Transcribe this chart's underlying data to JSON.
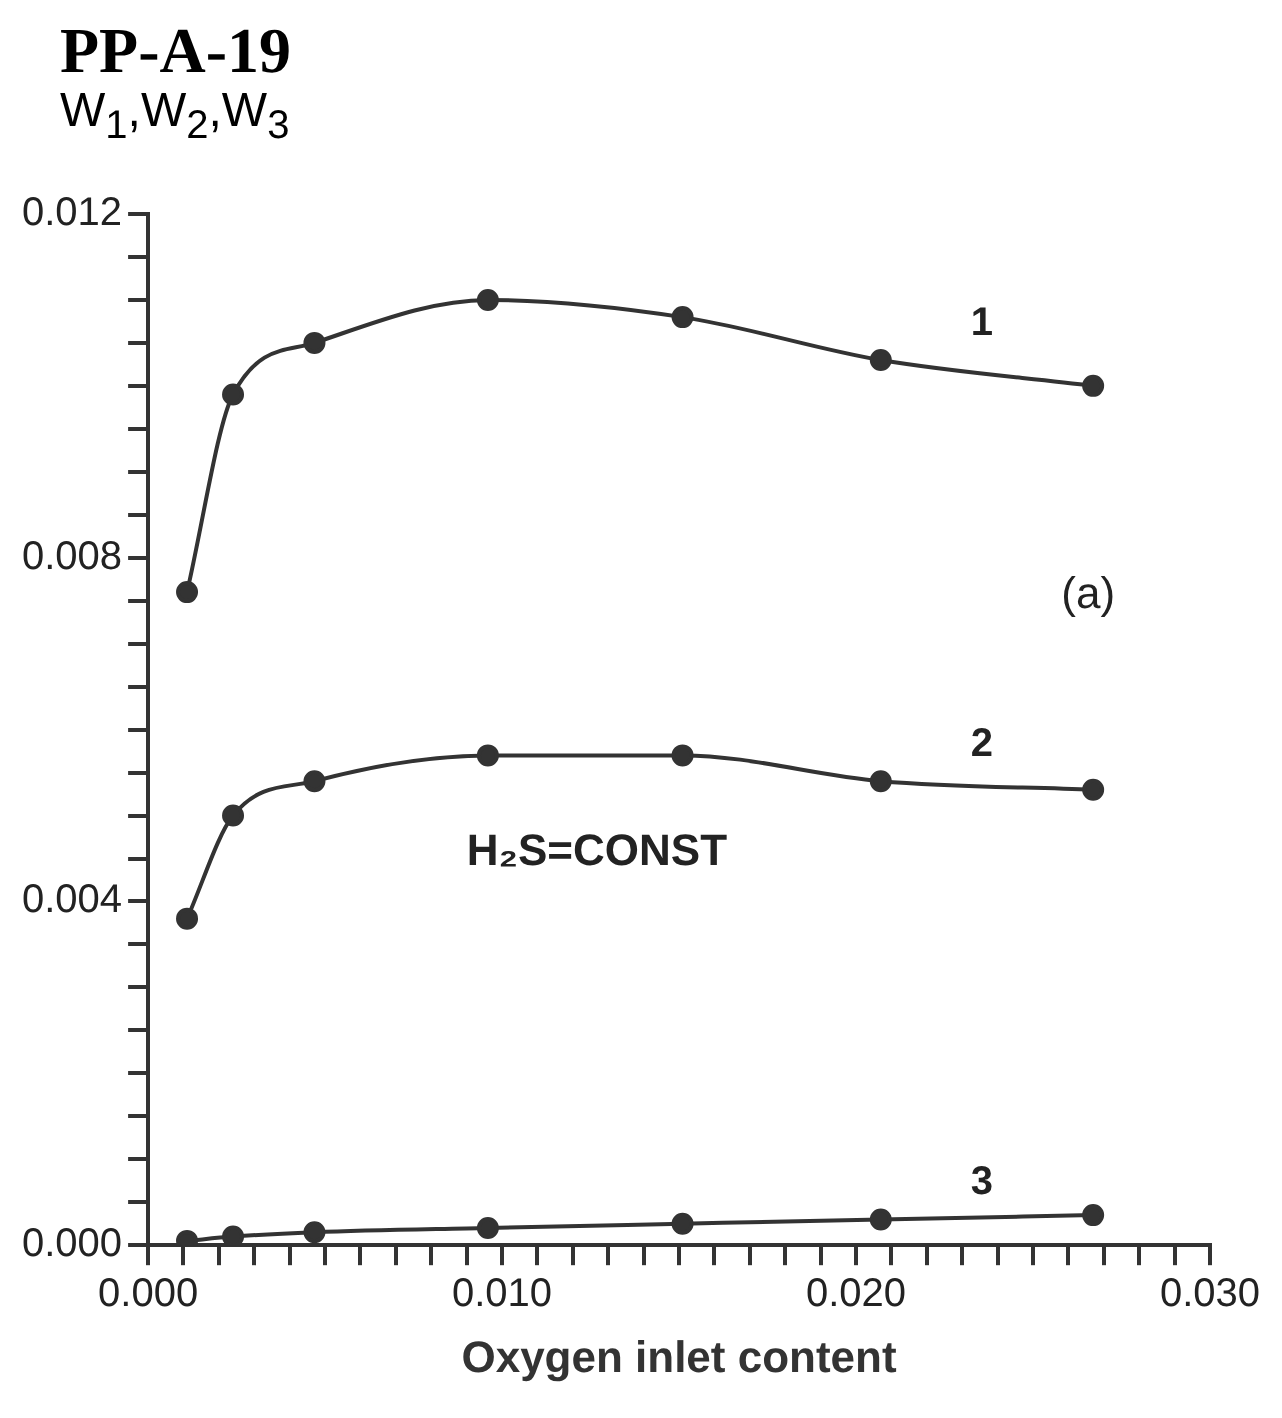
{
  "chart_data": {
    "type": "line",
    "title": "PP-A-19",
    "ylabel": "W$_{1}$,W$_{2}$,W$_{3}$",
    "xlabel": "Oxygen inlet content",
    "x": [
      0.0011,
      0.0024,
      0.0047,
      0.0096,
      0.0151,
      0.0207,
      0.0267
    ],
    "series": [
      {
        "name": "1",
        "color": "#333333",
        "values": [
          0.0076,
          0.0099,
          0.0105,
          0.011,
          0.0108,
          0.0103,
          0.01
        ]
      },
      {
        "name": "2",
        "color": "#333333",
        "values": [
          0.0038,
          0.005,
          0.0054,
          0.0057,
          0.0057,
          0.0054,
          0.0053
        ]
      },
      {
        "name": "3",
        "color": "#333333",
        "values": [
          5e-05,
          0.0001,
          0.00015,
          0.0002,
          0.00025,
          0.0003,
          0.00035
        ]
      }
    ],
    "xlim": [
      0,
      0.03
    ],
    "ylim": [
      0,
      0.012
    ],
    "xticks": [
      {
        "value": 0,
        "label": "0.000"
      },
      {
        "value": 0.001,
        "label": null
      },
      {
        "value": 0.002,
        "label": null
      },
      {
        "value": 0.003,
        "label": null
      },
      {
        "value": 0.004,
        "label": null
      },
      {
        "value": 0.005,
        "label": null
      },
      {
        "value": 0.006,
        "label": null
      },
      {
        "value": 0.007,
        "label": null
      },
      {
        "value": 0.008,
        "label": null
      },
      {
        "value": 0.009,
        "label": null
      },
      {
        "value": 0.01,
        "label": "0.010"
      },
      {
        "value": 0.011,
        "label": null
      },
      {
        "value": 0.012,
        "label": null
      },
      {
        "value": 0.013,
        "label": null
      },
      {
        "value": 0.014,
        "label": null
      },
      {
        "value": 0.015,
        "label": null
      },
      {
        "value": 0.016,
        "label": null
      },
      {
        "value": 0.017,
        "label": null
      },
      {
        "value": 0.018,
        "label": null
      },
      {
        "value": 0.019,
        "label": null
      },
      {
        "value": 0.02,
        "label": "0.020"
      },
      {
        "value": 0.021,
        "label": null
      },
      {
        "value": 0.022,
        "label": null
      },
      {
        "value": 0.023,
        "label": null
      },
      {
        "value": 0.024,
        "label": null
      },
      {
        "value": 0.025,
        "label": null
      },
      {
        "value": 0.026,
        "label": null
      },
      {
        "value": 0.027,
        "label": null
      },
      {
        "value": 0.028,
        "label": null
      },
      {
        "value": 0.029,
        "label": null
      },
      {
        "value": 0.03,
        "label": "0.030"
      }
    ],
    "yticks": [
      {
        "value": 0,
        "label": "0.000"
      },
      {
        "value": 0.0005,
        "label": null
      },
      {
        "value": 0.001,
        "label": null
      },
      {
        "value": 0.0015,
        "label": null
      },
      {
        "value": 0.002,
        "label": null
      },
      {
        "value": 0.0025,
        "label": null
      },
      {
        "value": 0.003,
        "label": null
      },
      {
        "value": 0.0035,
        "label": null
      },
      {
        "value": 0.004,
        "label": "0.004"
      },
      {
        "value": 0.0045,
        "label": null
      },
      {
        "value": 0.005,
        "label": null
      },
      {
        "value": 0.0055,
        "label": null
      },
      {
        "value": 0.006,
        "label": null
      },
      {
        "value": 0.0065,
        "label": null
      },
      {
        "value": 0.007,
        "label": null
      },
      {
        "value": 0.0075,
        "label": null
      },
      {
        "value": 0.008,
        "label": "0.008"
      },
      {
        "value": 0.0085,
        "label": null
      },
      {
        "value": 0.009,
        "label": null
      },
      {
        "value": 0.0095,
        "label": null
      },
      {
        "value": 0.01,
        "label": null
      },
      {
        "value": 0.0105,
        "label": null
      },
      {
        "value": 0.011,
        "label": null
      },
      {
        "value": 0.0115,
        "label": null
      },
      {
        "value": 0.012,
        "label": "0.012"
      }
    ],
    "annotations": [
      "(a)",
      "H₂S=CONST"
    ],
    "grid": false,
    "legend": false,
    "marker": "circle",
    "line_style": "solid"
  }
}
